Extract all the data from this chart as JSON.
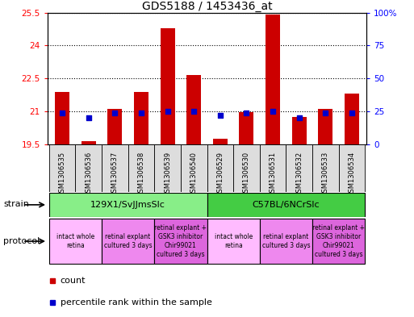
{
  "title": "GDS5188 / 1453436_at",
  "samples": [
    "GSM1306535",
    "GSM1306536",
    "GSM1306537",
    "GSM1306538",
    "GSM1306539",
    "GSM1306540",
    "GSM1306529",
    "GSM1306530",
    "GSM1306531",
    "GSM1306532",
    "GSM1306533",
    "GSM1306534"
  ],
  "count_values": [
    21.9,
    19.65,
    21.1,
    21.9,
    24.8,
    22.65,
    19.75,
    20.95,
    25.4,
    20.75,
    21.1,
    21.8
  ],
  "percentile_values": [
    24,
    20,
    24,
    24,
    25,
    25,
    22,
    24,
    25,
    20,
    24,
    24
  ],
  "ylim_left": [
    19.5,
    25.5
  ],
  "ylim_right": [
    0,
    100
  ],
  "yticks_left": [
    19.5,
    21.0,
    22.5,
    24.0,
    25.5
  ],
  "ytick_labels_left": [
    "19.5",
    "21",
    "22.5",
    "24",
    "25.5"
  ],
  "yticks_right": [
    0,
    25,
    50,
    75,
    100
  ],
  "ytick_labels_right": [
    "0",
    "25",
    "50",
    "75",
    "100%"
  ],
  "bar_bottom": 19.5,
  "bar_color": "#cc0000",
  "percentile_color": "#0000cc",
  "strain_groups": [
    {
      "label": "129X1/SvJJmsSlc",
      "start": 0,
      "end": 5,
      "color": "#88ee88"
    },
    {
      "label": "C57BL/6NCrSlc",
      "start": 6,
      "end": 11,
      "color": "#44cc44"
    }
  ],
  "protocol_groups": [
    {
      "label": "intact whole\nretina",
      "start": 0,
      "end": 1,
      "color": "#ffbbff"
    },
    {
      "label": "retinal explant\ncultured 3 days",
      "start": 2,
      "end": 3,
      "color": "#ee88ee"
    },
    {
      "label": "retinal explant +\nGSK3 inhibitor\nChir99021\ncultured 3 days",
      "start": 4,
      "end": 5,
      "color": "#dd66dd"
    },
    {
      "label": "intact whole\nretina",
      "start": 6,
      "end": 7,
      "color": "#ffbbff"
    },
    {
      "label": "retinal explant\ncultured 3 days",
      "start": 8,
      "end": 9,
      "color": "#ee88ee"
    },
    {
      "label": "retinal explant +\nGSK3 inhibitor\nChir99021\ncultured 3 days",
      "start": 10,
      "end": 11,
      "color": "#dd66dd"
    }
  ],
  "legend_items": [
    {
      "label": "count",
      "color": "#cc0000"
    },
    {
      "label": "percentile rank within the sample",
      "color": "#0000cc"
    }
  ],
  "fig_width": 5.13,
  "fig_height": 3.93,
  "dpi": 100
}
